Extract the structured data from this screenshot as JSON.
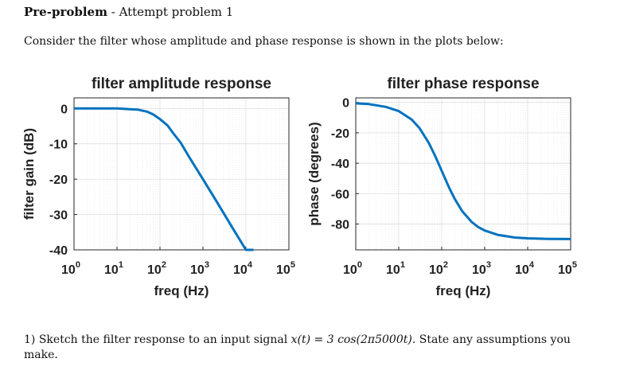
{
  "header": {
    "title": "Pre-problem",
    "separator": " - ",
    "subtitle": "Attempt problem 1"
  },
  "intro_text": "Consider the filter whose amplitude and phase response is shown in the plots below:",
  "question": {
    "number": "1)",
    "before_signal": "Sketch the filter response to an input signal",
    "signal": "x(t) = 3 cos(2π5000t).",
    "after_signal": "State any assumptions you make."
  },
  "chart_data": [
    {
      "type": "line",
      "title": "filter amplitude response",
      "xlabel": "freq (Hz)",
      "ylabel": "filter gain (dB)",
      "xscale": "log",
      "xlim": [
        1,
        100000
      ],
      "ylim": [
        -40,
        3
      ],
      "xticks": [
        "10^0",
        "10^1",
        "10^2",
        "10^3",
        "10^4",
        "10^5"
      ],
      "yticks": [
        "0",
        "-10",
        "-20",
        "-30",
        "-40"
      ],
      "grid": true,
      "line_color": "#0072BD",
      "series": [
        {
          "x": [
            1,
            3,
            10,
            20,
            30,
            50,
            70,
            100,
            150,
            200,
            300,
            500,
            1000,
            2000,
            5000,
            10000,
            15000
          ],
          "y": [
            0,
            0,
            0,
            -0.2,
            -0.3,
            -0.9,
            -1.7,
            -3.0,
            -4.8,
            -6.9,
            -9.6,
            -14.1,
            -20.0,
            -26.0,
            -34.0,
            -40.0,
            -40.0
          ]
        }
      ]
    },
    {
      "type": "line",
      "title": "filter phase response",
      "xlabel": "freq (Hz)",
      "ylabel": "phase (degrees)",
      "xscale": "log",
      "xlim": [
        1,
        100000
      ],
      "ylim": [
        -97,
        3
      ],
      "xticks": [
        "10^0",
        "10^1",
        "10^2",
        "10^3",
        "10^4",
        "10^5"
      ],
      "yticks": [
        "0",
        "-20",
        "-40",
        "-60",
        "-80"
      ],
      "grid": true,
      "line_color": "#0072BD",
      "series": [
        {
          "x": [
            1,
            2,
            5,
            10,
            20,
            30,
            50,
            70,
            100,
            150,
            200,
            300,
            500,
            700,
            1000,
            2000,
            5000,
            10000,
            30000,
            100000
          ],
          "y": [
            -0.6,
            -1.1,
            -2.9,
            -5.7,
            -11.3,
            -16.7,
            -26.6,
            -35.0,
            -45.0,
            -56.3,
            -63.4,
            -71.6,
            -78.7,
            -81.9,
            -84.3,
            -87.1,
            -88.9,
            -89.4,
            -89.8,
            -89.9
          ]
        }
      ]
    }
  ]
}
